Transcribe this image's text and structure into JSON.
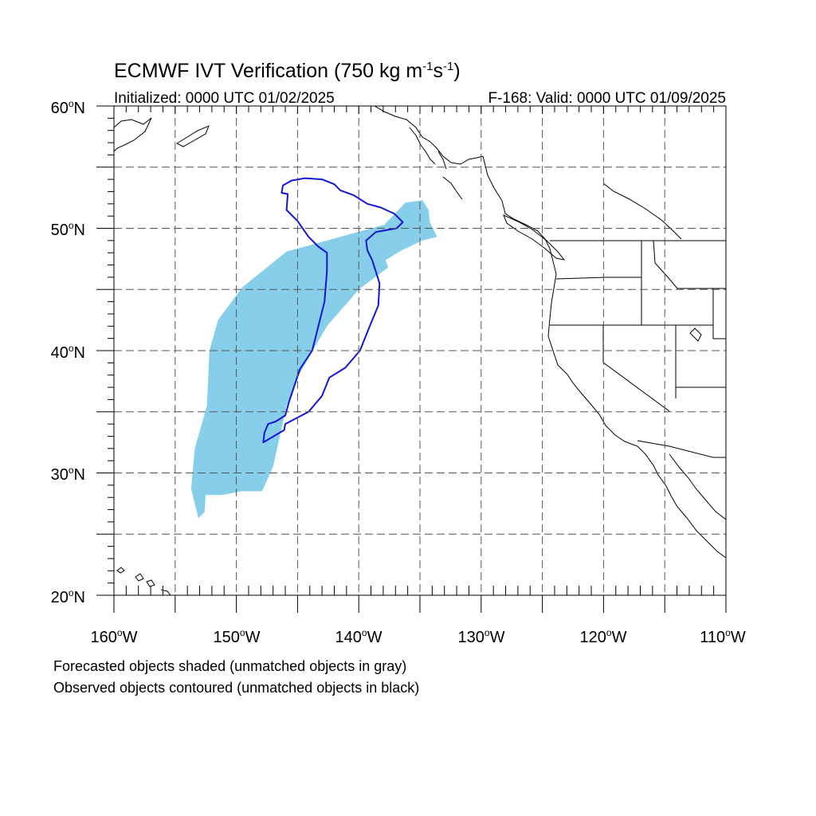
{
  "title": {
    "main_prefix": "ECMWF IVT Verification (750 kg m",
    "sup1": "-1",
    "mid": "s",
    "sup2": "-1",
    "suffix": ")"
  },
  "subtitle_left": "Initialized: 0000 UTC 01/02/2025",
  "subtitle_right": "F-168: Valid: 0000 UTC 01/09/2025",
  "map": {
    "lon_range": [
      -160,
      -110
    ],
    "lat_range": [
      20,
      60
    ],
    "lat_labels": [
      {
        "lat": 60,
        "deg": "60",
        "hem": "N"
      },
      {
        "lat": 50,
        "deg": "50",
        "hem": "N"
      },
      {
        "lat": 40,
        "deg": "40",
        "hem": "N"
      },
      {
        "lat": 30,
        "deg": "30",
        "hem": "N"
      },
      {
        "lat": 20,
        "deg": "20",
        "hem": "N"
      }
    ],
    "lon_labels": [
      {
        "lon": -160,
        "deg": "160",
        "hem": "W"
      },
      {
        "lon": -150,
        "deg": "150",
        "hem": "W"
      },
      {
        "lon": -140,
        "deg": "140",
        "hem": "W"
      },
      {
        "lon": -130,
        "deg": "130",
        "hem": "W"
      },
      {
        "lon": -120,
        "deg": "120",
        "hem": "W"
      },
      {
        "lon": -110,
        "deg": "110",
        "hem": "W"
      }
    ],
    "forecast_object": {
      "color": "#87ceeb",
      "lonlat": [
        [
          -153.1,
          26.3
        ],
        [
          -152.6,
          26.8
        ],
        [
          -152.5,
          28.2
        ],
        [
          -151.1,
          28.2
        ],
        [
          -149.6,
          28.5
        ],
        [
          -147.9,
          28.5
        ],
        [
          -147.0,
          30.5
        ],
        [
          -145.9,
          35.5
        ],
        [
          -144.9,
          38.0
        ],
        [
          -142.6,
          42.0
        ],
        [
          -140.0,
          45.0
        ],
        [
          -137.6,
          46.8
        ],
        [
          -137.8,
          47.4
        ],
        [
          -136.5,
          48.2
        ],
        [
          -134.8,
          49.0
        ],
        [
          -133.6,
          49.3
        ],
        [
          -134.2,
          50.5
        ],
        [
          -134.3,
          51.5
        ],
        [
          -134.8,
          52.3
        ],
        [
          -136.2,
          52.1
        ],
        [
          -137.9,
          50.3
        ],
        [
          -140.8,
          49.5
        ],
        [
          -145.9,
          48.1
        ],
        [
          -149.5,
          45.2
        ],
        [
          -151.5,
          42.5
        ],
        [
          -152.2,
          40.0
        ],
        [
          -152.4,
          35.5
        ],
        [
          -153.4,
          32.0
        ],
        [
          -153.7,
          28.7
        ],
        [
          -153.1,
          26.3
        ]
      ]
    },
    "observed_object": {
      "color": "#1515d6",
      "lonlat": [
        [
          -147.8,
          32.5
        ],
        [
          -146.1,
          33.5
        ],
        [
          -146.0,
          34.0
        ],
        [
          -144.1,
          35.0
        ],
        [
          -143.0,
          36.3
        ],
        [
          -142.4,
          37.8
        ],
        [
          -141.1,
          38.6
        ],
        [
          -139.9,
          40.0
        ],
        [
          -139.1,
          42.0
        ],
        [
          -138.4,
          43.7
        ],
        [
          -138.3,
          45.5
        ],
        [
          -138.9,
          47.4
        ],
        [
          -139.3,
          48.2
        ],
        [
          -139.4,
          49.0
        ],
        [
          -138.6,
          49.7
        ],
        [
          -136.9,
          50.0
        ],
        [
          -136.4,
          50.5
        ],
        [
          -137.1,
          51.2
        ],
        [
          -138.2,
          51.7
        ],
        [
          -139.3,
          52.0
        ],
        [
          -140.4,
          52.7
        ],
        [
          -141.5,
          53.1
        ],
        [
          -142.0,
          53.6
        ],
        [
          -143.0,
          54.0
        ],
        [
          -144.4,
          54.1
        ],
        [
          -145.5,
          53.9
        ],
        [
          -146.2,
          53.5
        ],
        [
          -146.3,
          52.9
        ],
        [
          -145.8,
          52.8
        ],
        [
          -145.9,
          51.5
        ],
        [
          -145.0,
          50.6
        ],
        [
          -144.1,
          49.3
        ],
        [
          -143.3,
          48.5
        ],
        [
          -142.6,
          48.0
        ],
        [
          -142.6,
          46.5
        ],
        [
          -142.8,
          44.0
        ],
        [
          -143.3,
          42.0
        ],
        [
          -143.8,
          40.0
        ],
        [
          -144.8,
          38.5
        ],
        [
          -145.7,
          35.8
        ],
        [
          -146.0,
          34.7
        ],
        [
          -146.8,
          34.2
        ],
        [
          -147.4,
          34.0
        ],
        [
          -147.7,
          33.3
        ],
        [
          -147.8,
          32.5
        ]
      ]
    }
  },
  "notes": [
    "Forecasted objects shaded (unmatched objects in gray)",
    "Observed objects contoured (unmatched objects in black)"
  ]
}
